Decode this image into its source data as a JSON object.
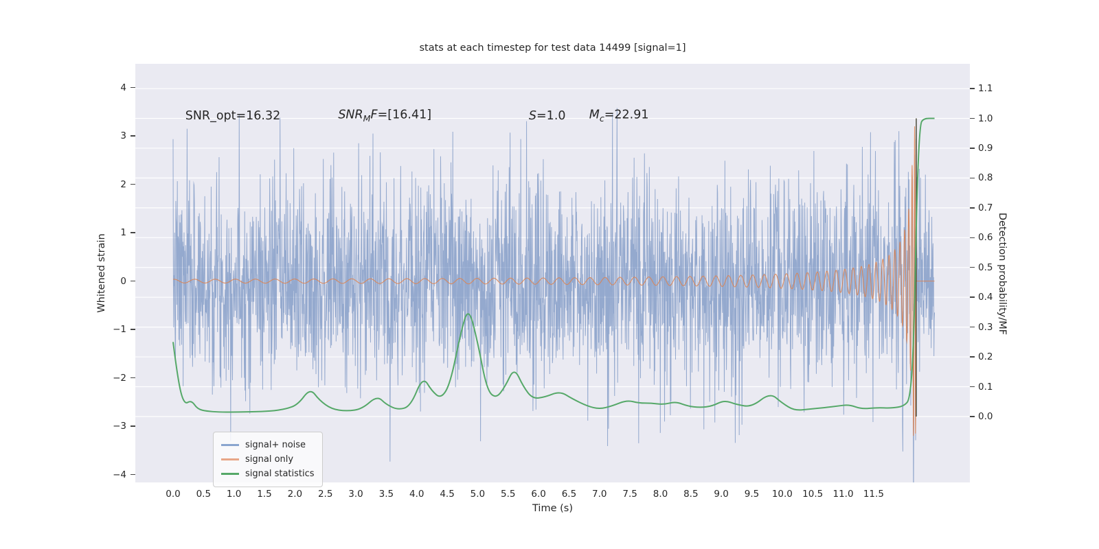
{
  "chart_data": {
    "type": "line",
    "title": "stats at each timestep for test data 14499 [signal=1]",
    "x_axis": {
      "label": "Time (s)",
      "lim": [
        -0.62,
        13.08
      ],
      "decimals": 1,
      "ticks": [
        0.0,
        0.5,
        1.0,
        1.5,
        2.0,
        2.5,
        3.0,
        3.5,
        4.0,
        4.5,
        5.0,
        5.5,
        6.0,
        6.5,
        7.0,
        7.5,
        8.0,
        8.5,
        9.0,
        9.5,
        10.0,
        10.5,
        11.0,
        11.5
      ]
    },
    "y_left": {
      "label": "Whitened strain",
      "lim": [
        -4.16,
        4.49
      ],
      "decimals": 0,
      "ticks": [
        -4,
        -3,
        -2,
        -1,
        0,
        1,
        2,
        3,
        4
      ]
    },
    "y_right": {
      "label": "Detection probability/MF",
      "lim": [
        -0.221,
        1.183
      ],
      "decimals": 1,
      "ticks": [
        0.0,
        0.1,
        0.2,
        0.3,
        0.4,
        0.5,
        0.6,
        0.7,
        0.8,
        0.9,
        1.0,
        1.1
      ]
    },
    "grid": {
      "on": true,
      "color": "#ffffff",
      "axis": "y_right"
    },
    "plot_bg": "#eaeaf2",
    "annotations": [
      {
        "x": 0.2,
        "y": 3.4,
        "segments": [
          {
            "text": "SNR_opt=16.32"
          }
        ]
      },
      {
        "x": 2.71,
        "y": 3.4,
        "segments": [
          {
            "text": "SNR",
            "italic": true
          },
          {
            "text": "M",
            "italic": true,
            "sub": true
          },
          {
            "text": "F",
            "italic": true
          },
          {
            "text": "=[16.41]"
          }
        ]
      },
      {
        "x": 5.84,
        "y": 3.4,
        "segments": [
          {
            "text": "S",
            "italic": true
          },
          {
            "text": "=1.0"
          }
        ]
      },
      {
        "x": 6.83,
        "y": 3.4,
        "segments": [
          {
            "text": "M",
            "italic": true
          },
          {
            "text": "c",
            "italic": true,
            "sub": true
          },
          {
            "text": "=22.91"
          }
        ]
      }
    ],
    "series": [
      {
        "name": "signal+ noise",
        "type": "gaussian-noise",
        "color": "#4C72B0",
        "alpha": 0.55,
        "mean": 0,
        "std": 1.05,
        "t_start": 0,
        "t_end": 12.5,
        "samples": 2500,
        "seed": 7,
        "includes_signal": true,
        "axis": "left"
      },
      {
        "name": "signal only",
        "type": "chirp",
        "color": "#DD8452",
        "alpha": 0.9,
        "t_start": 0,
        "t_end": 12.5,
        "t_merger": 12.2,
        "amp_coef": 0.28,
        "amp_exp": -0.8,
        "amp_max": 3.2,
        "phase_coef": 12,
        "phase_exp": 0.625,
        "axis": "left"
      },
      {
        "name": "signal statistics",
        "type": "line",
        "color": "#55A868",
        "axis": "right",
        "points": [
          [
            0.0,
            0.25
          ],
          [
            0.08,
            0.12
          ],
          [
            0.18,
            0.04
          ],
          [
            0.3,
            0.055
          ],
          [
            0.4,
            0.025
          ],
          [
            0.55,
            0.018
          ],
          [
            0.75,
            0.015
          ],
          [
            1.0,
            0.015
          ],
          [
            1.3,
            0.016
          ],
          [
            1.6,
            0.018
          ],
          [
            1.85,
            0.025
          ],
          [
            2.05,
            0.04
          ],
          [
            2.25,
            0.095
          ],
          [
            2.4,
            0.055
          ],
          [
            2.6,
            0.025
          ],
          [
            2.85,
            0.018
          ],
          [
            3.1,
            0.025
          ],
          [
            3.35,
            0.07
          ],
          [
            3.5,
            0.04
          ],
          [
            3.7,
            0.022
          ],
          [
            3.9,
            0.035
          ],
          [
            4.1,
            0.135
          ],
          [
            4.25,
            0.085
          ],
          [
            4.4,
            0.06
          ],
          [
            4.55,
            0.11
          ],
          [
            4.72,
            0.28
          ],
          [
            4.85,
            0.37
          ],
          [
            5.0,
            0.25
          ],
          [
            5.15,
            0.09
          ],
          [
            5.3,
            0.06
          ],
          [
            5.45,
            0.1
          ],
          [
            5.6,
            0.165
          ],
          [
            5.75,
            0.1
          ],
          [
            5.9,
            0.06
          ],
          [
            6.1,
            0.065
          ],
          [
            6.35,
            0.085
          ],
          [
            6.55,
            0.06
          ],
          [
            6.8,
            0.035
          ],
          [
            7.0,
            0.025
          ],
          [
            7.2,
            0.035
          ],
          [
            7.45,
            0.055
          ],
          [
            7.65,
            0.045
          ],
          [
            7.85,
            0.045
          ],
          [
            8.05,
            0.04
          ],
          [
            8.25,
            0.05
          ],
          [
            8.45,
            0.035
          ],
          [
            8.65,
            0.03
          ],
          [
            8.85,
            0.035
          ],
          [
            9.05,
            0.055
          ],
          [
            9.25,
            0.04
          ],
          [
            9.5,
            0.032
          ],
          [
            9.8,
            0.08
          ],
          [
            10.0,
            0.045
          ],
          [
            10.2,
            0.02
          ],
          [
            10.45,
            0.025
          ],
          [
            10.7,
            0.03
          ],
          [
            10.9,
            0.035
          ],
          [
            11.1,
            0.04
          ],
          [
            11.3,
            0.025
          ],
          [
            11.55,
            0.03
          ],
          [
            11.8,
            0.028
          ],
          [
            12.0,
            0.035
          ],
          [
            12.1,
            0.06
          ],
          [
            12.16,
            0.25
          ],
          [
            12.21,
            0.75
          ],
          [
            12.26,
            0.98
          ],
          [
            12.32,
            1.0
          ],
          [
            12.5,
            1.0
          ]
        ]
      }
    ],
    "marker_line": {
      "name": "merger-marker",
      "x": 12.2,
      "y0": 0.0,
      "y1": 1.0,
      "axis": "right",
      "color": "#4d4d3d"
    },
    "legend": {
      "items": [
        {
          "label": "signal+ noise",
          "color": "#8aa5cf"
        },
        {
          "label": "signal only",
          "color": "#e8a687"
        },
        {
          "label": "signal statistics",
          "color": "#55A868"
        }
      ]
    }
  }
}
